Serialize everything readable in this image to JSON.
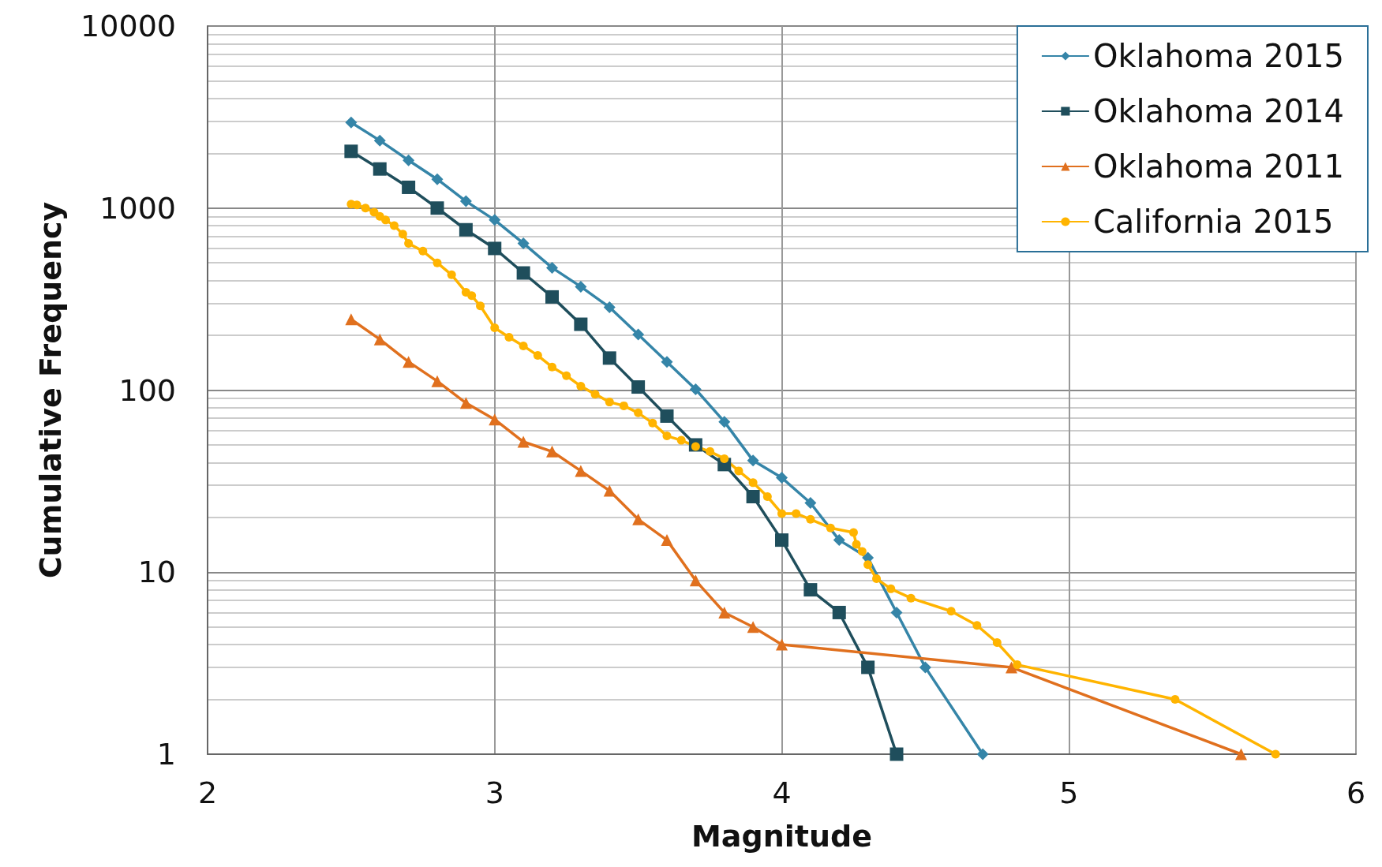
{
  "chart_data": {
    "type": "line",
    "xlabel": "Magnitude",
    "ylabel": "Cumulative Frequency",
    "log": "y",
    "grid": true,
    "legend": "top right",
    "xlim": [
      2,
      6
    ],
    "xticks": [
      2,
      3,
      4,
      5,
      6
    ],
    "ylim": [
      1,
      10000
    ],
    "yticks": [
      1,
      10,
      100,
      1000,
      10000
    ],
    "series": [
      {
        "name": "Oklahoma 2015",
        "color": "#3585a8",
        "marker": "diamond",
        "x": [
          2.5,
          2.6,
          2.7,
          2.8,
          2.9,
          3.0,
          3.1,
          3.2,
          3.3,
          3.4,
          3.5,
          3.6,
          3.7,
          3.8,
          3.9,
          4.0,
          4.1,
          4.2,
          4.3,
          4.4,
          4.5,
          4.7
        ],
        "values": [
          2950,
          2350,
          1830,
          1440,
          1090,
          860,
          640,
          470,
          370,
          285,
          202,
          143,
          101,
          67,
          41,
          33,
          24,
          15,
          12,
          6,
          3,
          1
        ]
      },
      {
        "name": "Oklahoma 2014",
        "color": "#1f4e5c",
        "marker": "square",
        "x": [
          2.5,
          2.6,
          2.7,
          2.8,
          2.9,
          3.0,
          3.1,
          3.2,
          3.3,
          3.4,
          3.5,
          3.6,
          3.7,
          3.8,
          3.9,
          4.0,
          4.1,
          4.2,
          4.3,
          4.4
        ],
        "values": [
          2050,
          1640,
          1300,
          1000,
          760,
          600,
          440,
          325,
          230,
          150,
          104,
          72,
          50,
          39,
          26,
          15,
          8,
          6,
          3,
          1
        ]
      },
      {
        "name": "Oklahoma 2011",
        "color": "#e0701e",
        "marker": "triangle",
        "x": [
          2.5,
          2.6,
          2.7,
          2.8,
          2.9,
          3.0,
          3.1,
          3.2,
          3.3,
          3.4,
          3.5,
          3.6,
          3.7,
          3.8,
          3.9,
          4.0,
          4.8,
          5.6
        ],
        "values": [
          245,
          190,
          143,
          112,
          85,
          69,
          52,
          46,
          36,
          28,
          19.5,
          15,
          9,
          6,
          5,
          4,
          3,
          1
        ]
      },
      {
        "name": "California 2015",
        "color": "#ffb400",
        "marker": "circle",
        "x": [
          2.5,
          2.52,
          2.55,
          2.58,
          2.6,
          2.62,
          2.65,
          2.68,
          2.7,
          2.75,
          2.8,
          2.85,
          2.9,
          2.92,
          2.95,
          3.0,
          3.05,
          3.1,
          3.15,
          3.2,
          3.25,
          3.3,
          3.35,
          3.4,
          3.45,
          3.5,
          3.55,
          3.6,
          3.65,
          3.7,
          3.75,
          3.8,
          3.85,
          3.9,
          3.95,
          4.0,
          4.05,
          4.1,
          4.17,
          4.25,
          4.26,
          4.28,
          4.3,
          4.33,
          4.38,
          4.45,
          4.59,
          4.68,
          4.75,
          4.82,
          5.37,
          5.72
        ],
        "values": [
          1050,
          1040,
          1000,
          950,
          900,
          860,
          800,
          720,
          640,
          580,
          500,
          430,
          345,
          330,
          290,
          220,
          195,
          175,
          155,
          134,
          120,
          105,
          95,
          86,
          82,
          75,
          66,
          56,
          53,
          49,
          46,
          42,
          36,
          31,
          26,
          21,
          21,
          19.5,
          17.5,
          16.5,
          14.2,
          13,
          11,
          9.2,
          8.1,
          7.2,
          6.1,
          5.1,
          4.1,
          3.1,
          2,
          1
        ]
      }
    ]
  }
}
